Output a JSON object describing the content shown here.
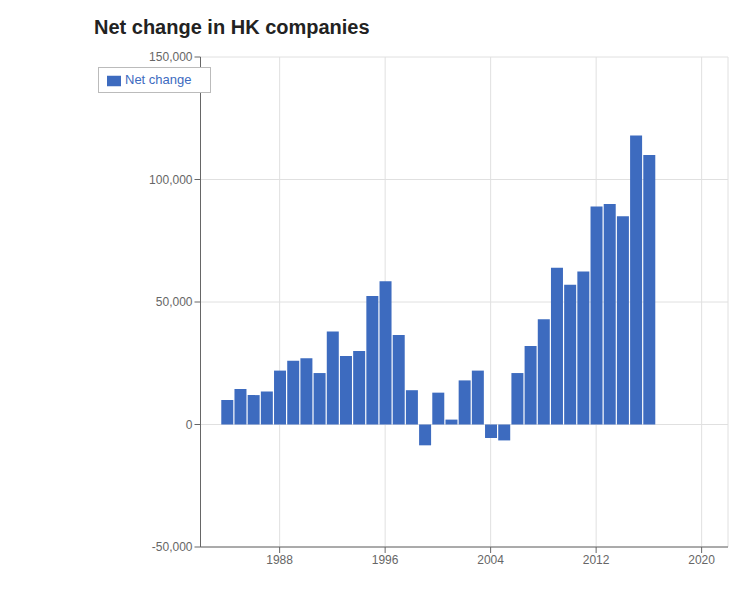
{
  "chart_data": {
    "type": "bar",
    "title": "Net change in HK companies",
    "x": [
      1984,
      1985,
      1986,
      1987,
      1988,
      1989,
      1990,
      1991,
      1992,
      1993,
      1994,
      1995,
      1996,
      1997,
      1998,
      1999,
      2000,
      2001,
      2002,
      2003,
      2004,
      2005,
      2006,
      2007,
      2008,
      2009,
      2010,
      2011,
      2012,
      2013,
      2014,
      2015,
      2016
    ],
    "series": [
      {
        "name": "Net change",
        "color": "#3d6bbf",
        "values": [
          10000,
          14500,
          12000,
          13500,
          22000,
          26000,
          27000,
          21000,
          38000,
          28000,
          30000,
          52500,
          58500,
          36500,
          14000,
          -8500,
          13000,
          2000,
          18000,
          22000,
          -5500,
          -6500,
          21000,
          32000,
          43000,
          64000,
          57000,
          62500,
          89000,
          90000,
          85000,
          118000,
          110000
        ]
      }
    ],
    "xlim": [
      1982,
      2022
    ],
    "xticks": [
      1988,
      1996,
      2004,
      2012,
      2020
    ],
    "ylim": [
      -50000,
      150000
    ],
    "yticks": [
      {
        "value": -50000,
        "label": "-50,000"
      },
      0,
      {
        "value": 50000,
        "label": "50,000"
      },
      {
        "value": 100000,
        "label": "100,000"
      },
      {
        "value": 150000,
        "label": "150,000"
      }
    ],
    "grid": true,
    "legend": "upper left"
  }
}
